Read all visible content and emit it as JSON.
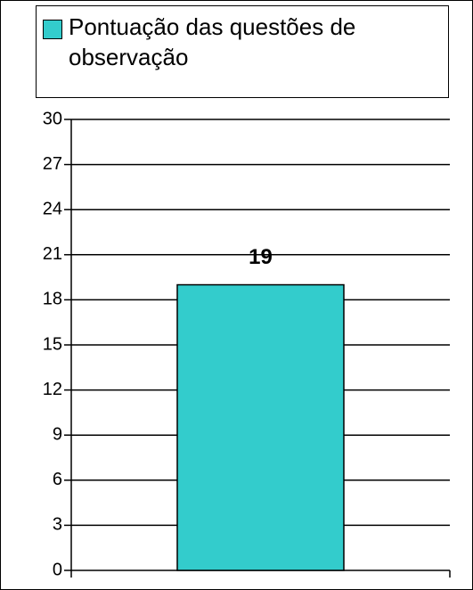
{
  "chart_data": {
    "type": "bar",
    "categories": [
      null
    ],
    "series": [
      {
        "name": "Pontuação das questões de observação",
        "color": "#33cccc",
        "values": [
          19
        ]
      }
    ],
    "ylim": [
      0,
      30
    ],
    "yticks": [
      0,
      3,
      6,
      9,
      12,
      15,
      18,
      21,
      24,
      27,
      30
    ],
    "grid": true,
    "legend": "top"
  }
}
